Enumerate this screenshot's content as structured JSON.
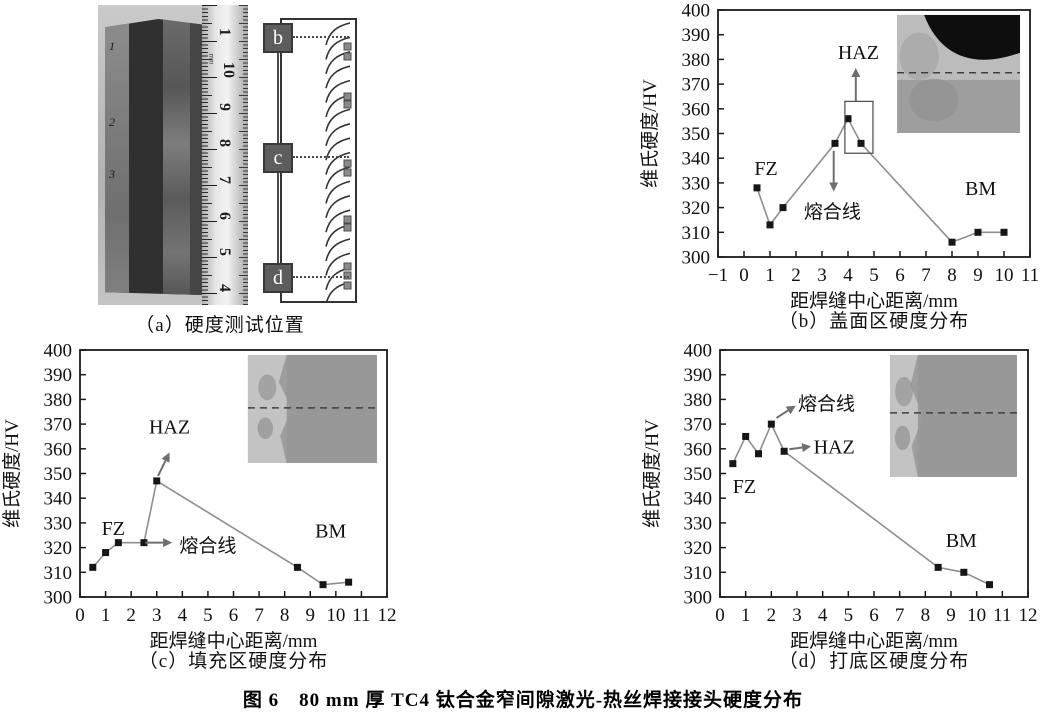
{
  "figure": {
    "caption": "图 6　80 mm 厚 TC4 钛合金窄间隙激光-热丝焊接接头硬度分布"
  },
  "panel_a": {
    "caption": "（a）硬度测试位置",
    "specimen_marks": [
      "1",
      "2",
      "3"
    ],
    "ruler_unit": "mm",
    "ruler_numbers": [
      "1",
      "10",
      "9",
      "8",
      "7",
      "6",
      "5",
      "4"
    ],
    "schematic_labels": [
      "b",
      "c",
      "d"
    ]
  },
  "chart_data": [
    {
      "id": "b",
      "type": "line",
      "caption": "（b）盖面区硬度分布",
      "xlabel": "距焊缝中心距离/mm",
      "ylabel": "维氏硬度/HV",
      "xlim": [
        -1,
        11
      ],
      "ylim": [
        300,
        400
      ],
      "xstep": 1,
      "ystep": 10,
      "grid": false,
      "legend": "none",
      "x": [
        0.5,
        1,
        1.5,
        3.5,
        4,
        4.5,
        8,
        9,
        10
      ],
      "y": [
        328,
        313,
        320,
        346,
        356,
        346,
        306,
        310,
        310
      ],
      "line_color": "#8f8f8f",
      "marker_color": "#161616",
      "annotations": [
        {
          "type": "text",
          "label": "FZ",
          "x": 0.85,
          "y": 336,
          "size": 20
        },
        {
          "type": "text",
          "label": "HAZ",
          "x": 4.4,
          "y": 383,
          "size": 20
        },
        {
          "type": "text",
          "label": "熔合线",
          "x": 3.4,
          "y": 318.5,
          "size": 19
        },
        {
          "type": "text",
          "label": "BM",
          "x": 9.1,
          "y": 328,
          "size": 20
        },
        {
          "type": "arrow",
          "x1": 4.3,
          "y1": 363,
          "x2": 4.3,
          "y2": 376.5
        },
        {
          "type": "arrow",
          "x1": 3.45,
          "y1": 343,
          "x2": 3.45,
          "y2": 326.5
        },
        {
          "type": "rect",
          "x1": 3.88,
          "y1": 342,
          "x2": 4.96,
          "y2": 363
        }
      ],
      "inset": {
        "style": "cap",
        "fx": 0.574,
        "fy": 0.02,
        "fw": 0.394,
        "fh": 0.478,
        "dash_fy": 0.49,
        "band": 0
      }
    },
    {
      "id": "c",
      "type": "line",
      "caption": "（c）填充区硬度分布",
      "xlabel": "距焊缝中心距离/mm",
      "ylabel": "维氏硬度/HV",
      "xlim": [
        0,
        12
      ],
      "ylim": [
        300,
        400
      ],
      "xstep": 1,
      "ystep": 10,
      "grid": false,
      "legend": "none",
      "x": [
        0.5,
        1,
        1.5,
        2.5,
        3,
        8.5,
        9.5,
        10.5
      ],
      "y": [
        312,
        318,
        322,
        322,
        347,
        312,
        305,
        306
      ],
      "line_color": "#8f8f8f",
      "marker_color": "#161616",
      "annotations": [
        {
          "type": "text",
          "label": "FZ",
          "x": 1.3,
          "y": 328,
          "size": 20
        },
        {
          "type": "text",
          "label": "HAZ",
          "x": 3.5,
          "y": 369,
          "size": 20
        },
        {
          "type": "text",
          "label": "熔合线",
          "x": 5.0,
          "y": 321,
          "size": 19
        },
        {
          "type": "text",
          "label": "BM",
          "x": 9.8,
          "y": 327,
          "size": 20
        },
        {
          "type": "arrow",
          "x1": 3.05,
          "y1": 349,
          "x2": 3.5,
          "y2": 358.5
        },
        {
          "type": "arrow",
          "x1": 2.55,
          "y1": 322,
          "x2": 3.6,
          "y2": 322
        }
      ],
      "inset": {
        "style": "boundary",
        "fx": 0.547,
        "fy": 0.02,
        "fw": 0.42,
        "fh": 0.437,
        "dash_fy": 0.49,
        "band": 0.3
      }
    },
    {
      "id": "d",
      "type": "line",
      "caption": "（d）打底区硬度分布",
      "xlabel": "距焊缝中心距离/mm",
      "ylabel": "维氏硬度/HV",
      "xlim": [
        0,
        12
      ],
      "ylim": [
        300,
        400
      ],
      "xstep": 1,
      "ystep": 10,
      "grid": false,
      "legend": "none",
      "x": [
        0.5,
        1,
        1.5,
        2,
        2.5,
        8.5,
        9.5,
        10.5
      ],
      "y": [
        354,
        365,
        358,
        370,
        359,
        312,
        310,
        305
      ],
      "line_color": "#8f8f8f",
      "marker_color": "#161616",
      "annotations": [
        {
          "type": "text",
          "label": "FZ",
          "x": 0.95,
          "y": 345,
          "size": 20
        },
        {
          "type": "text",
          "label": "熔合线",
          "x": 4.15,
          "y": 378.5,
          "size": 19
        },
        {
          "type": "text",
          "label": "HAZ",
          "x": 4.45,
          "y": 361,
          "size": 20
        },
        {
          "type": "text",
          "label": "BM",
          "x": 9.4,
          "y": 323,
          "size": 20
        },
        {
          "type": "arrow",
          "x1": 2.2,
          "y1": 372.5,
          "x2": 2.95,
          "y2": 377.5
        },
        {
          "type": "arrow",
          "x1": 2.7,
          "y1": 359.8,
          "x2": 3.55,
          "y2": 361
        }
      ],
      "inset": {
        "style": "boundary",
        "fx": 0.552,
        "fy": 0.02,
        "fw": 0.412,
        "fh": 0.494,
        "dash_fy": 0.475,
        "band": 0.22
      }
    }
  ]
}
